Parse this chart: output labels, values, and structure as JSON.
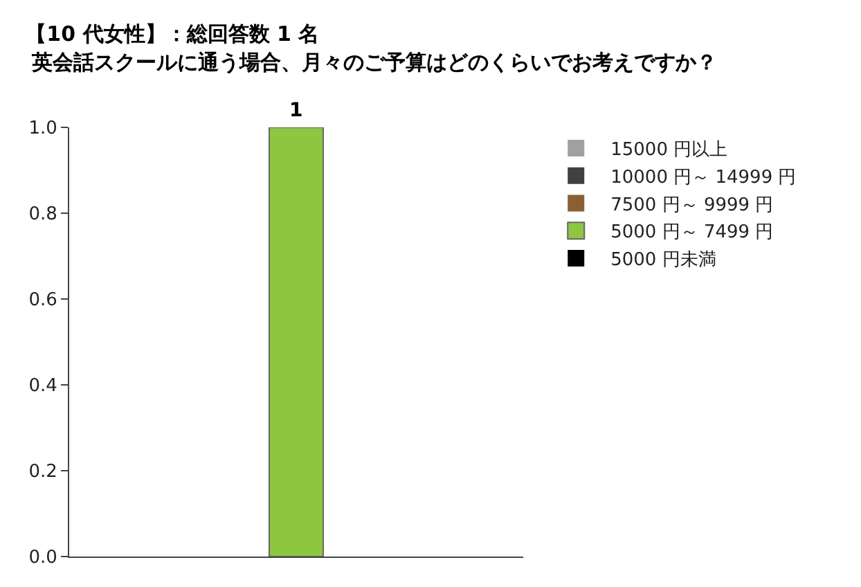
{
  "chart_data": {
    "type": "bar",
    "title": "【10 代女性】：総回答数 1 名",
    "subtitle": "英会話スクールに通う場合、月々のご予算はどのくらいでお考えですか？",
    "categories": [
      null
    ],
    "stacked": true,
    "series": [
      {
        "name": "5000 円未満",
        "color": "#000000",
        "values": [
          0
        ]
      },
      {
        "name": "5000 円～ 7499 円",
        "color": "#8dc63f",
        "values": [
          1
        ]
      },
      {
        "name": "7500 円～ 9999 円",
        "color": "#8b5e34",
        "values": [
          0
        ]
      },
      {
        "name": "10000 円～ 14999 円",
        "color": "#404040",
        "values": [
          0
        ]
      },
      {
        "name": "15000 円以上",
        "color": "#a0a0a0",
        "values": [
          0
        ]
      }
    ],
    "ylim": [
      0,
      1
    ],
    "yticks": [
      {
        "value": 0,
        "label": "0.0"
      },
      {
        "value": 0.2,
        "label": "0.2"
      },
      {
        "value": 0.4,
        "label": "0.4"
      },
      {
        "value": 0.6,
        "label": "0.6"
      },
      {
        "value": 0.8,
        "label": "0.8"
      },
      {
        "value": 1,
        "label": "1.0"
      }
    ],
    "totals": [
      "1"
    ],
    "grid": false,
    "legend": "right"
  }
}
